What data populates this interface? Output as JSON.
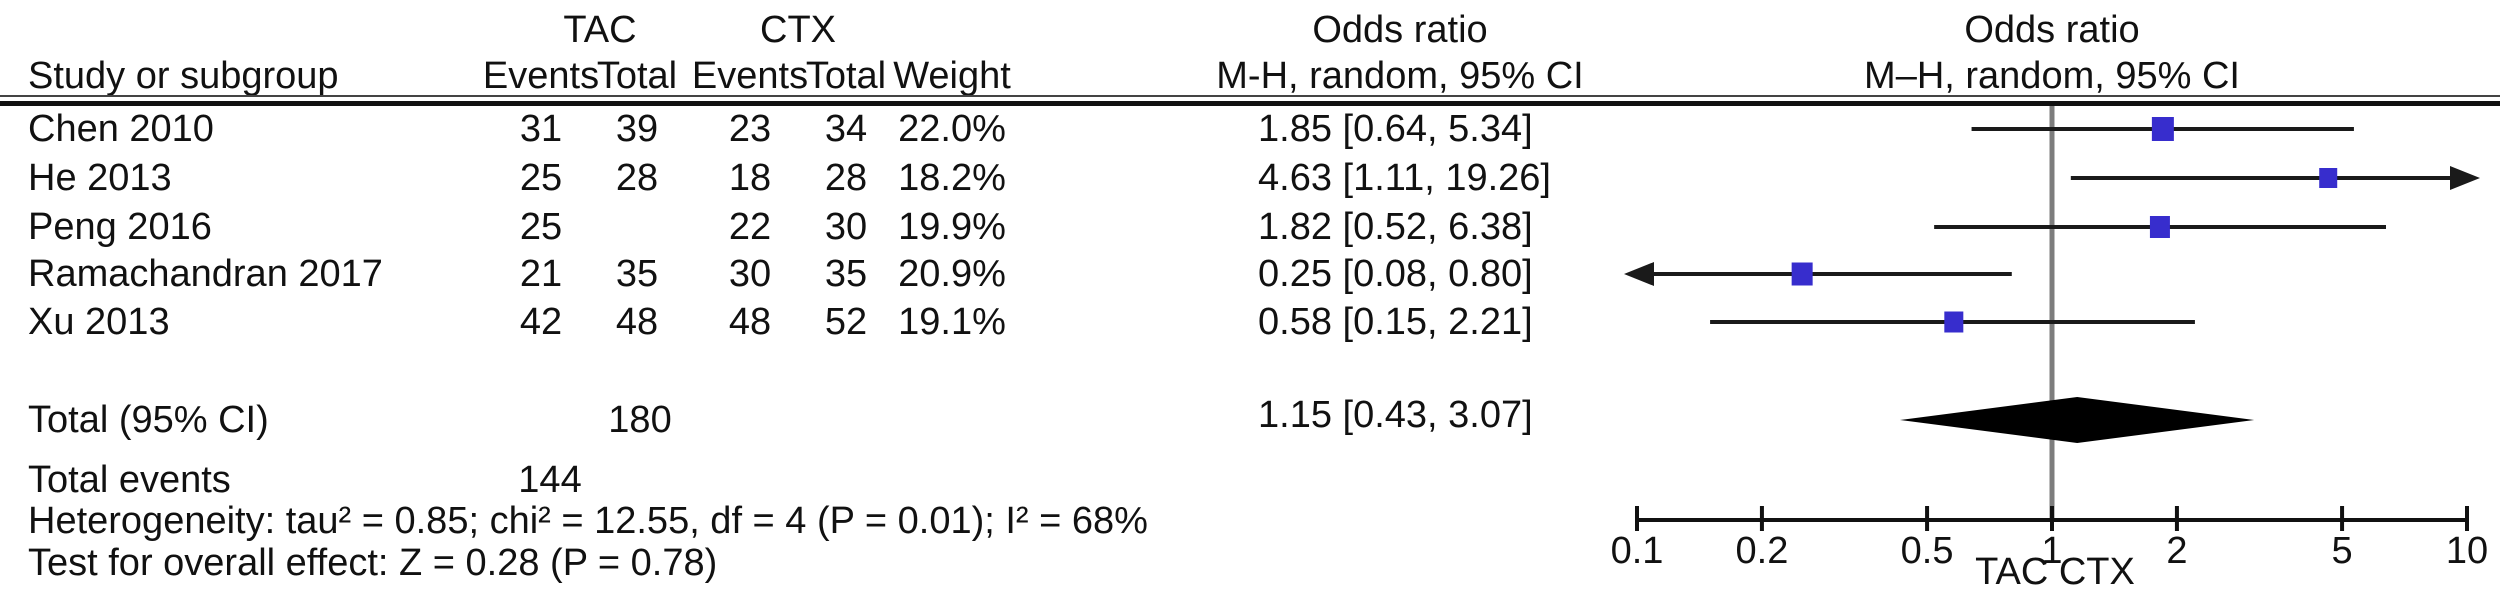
{
  "figure": {
    "header": {
      "study_col": "Study or subgroup",
      "tac_group": "TAC",
      "ctx_group": "CTX",
      "tac_events": "Events",
      "tac_total": "Total",
      "ctx_events": "Events",
      "ctx_total": "Total",
      "weight": "Weight",
      "or_title_left": "Odds ratio",
      "or_sub_left": "M-H, random, 95% CI",
      "or_title_right": "Odds ratio",
      "or_sub_right": "M–H, random, 95% CI"
    },
    "rows": [
      {
        "study": "Chen 2010",
        "tac_events": "31",
        "tac_total": "39",
        "ctx_events": "23",
        "ctx_total": "34",
        "weight": "22.0%",
        "or_ci": "1.85 [0.64, 5.34]"
      },
      {
        "study": "He 2013",
        "tac_events": "25",
        "tac_total": "28",
        "ctx_events": "18",
        "ctx_total": "28",
        "weight": "18.2%",
        "or_ci": "4.63 [1.11, 19.26]"
      },
      {
        "study": "Peng 2016",
        "tac_events": "25",
        "tac_total": "",
        "ctx_events": "22",
        "ctx_total": "30",
        "weight": "19.9%",
        "or_ci": "1.82 [0.52, 6.38]"
      },
      {
        "study": "Ramachandran 2017",
        "tac_events": "21",
        "tac_total": "35",
        "ctx_events": "30",
        "ctx_total": "35",
        "weight": "20.9%",
        "or_ci": "0.25 [0.08, 0.80]"
      },
      {
        "study": "Xu 2013",
        "tac_events": "42",
        "tac_total": "48",
        "ctx_events": "48",
        "ctx_total": "52",
        "weight": "19.1%",
        "or_ci": "0.58 [0.15, 2.21]"
      }
    ],
    "total_row": {
      "label": "Total (95% CI)",
      "tac_total": "180",
      "or_ci": "1.15 [0.43, 3.07]"
    },
    "total_events_row": {
      "label": "Total events",
      "value": "144"
    },
    "heterogeneity_line": "Heterogeneity: tau² = 0.85; chi² = 12.55, df = 4 (P = 0.01); I² = 68%",
    "overall_effect_line": "Test for overall effect: Z = 0.28 (P = 0.78)"
  },
  "chart_data": {
    "type": "forest",
    "x_scale": "log",
    "x_range": [
      0.1,
      10
    ],
    "x_ticks": [
      "0.1",
      "0.2",
      "0.5",
      "1",
      "2",
      "5",
      "10"
    ],
    "null_line_value": 1,
    "axis_caption": "TAC CTX",
    "studies": [
      {
        "name": "Chen 2010",
        "or": 1.85,
        "ci_low": 0.64,
        "ci_high": 5.34,
        "weight": 22.0
      },
      {
        "name": "He 2013",
        "or": 4.63,
        "ci_low": 1.11,
        "ci_high": 19.26,
        "weight": 18.2
      },
      {
        "name": "Peng 2016",
        "or": 1.82,
        "ci_low": 0.52,
        "ci_high": 6.38,
        "weight": 19.9
      },
      {
        "name": "Ramachandran 2017",
        "or": 0.25,
        "ci_low": 0.08,
        "ci_high": 0.8,
        "weight": 20.9
      },
      {
        "name": "Xu 2013",
        "or": 0.58,
        "ci_low": 0.15,
        "ci_high": 2.21,
        "weight": 19.1
      }
    ],
    "total": {
      "or": 1.15,
      "ci_low": 0.43,
      "ci_high": 3.07
    }
  },
  "colors": {
    "square": "#372DCD",
    "diamond": "#000000",
    "ci_line": "#1a1a1a",
    "null_line": "#7d7d7d",
    "axis": "#111111"
  }
}
